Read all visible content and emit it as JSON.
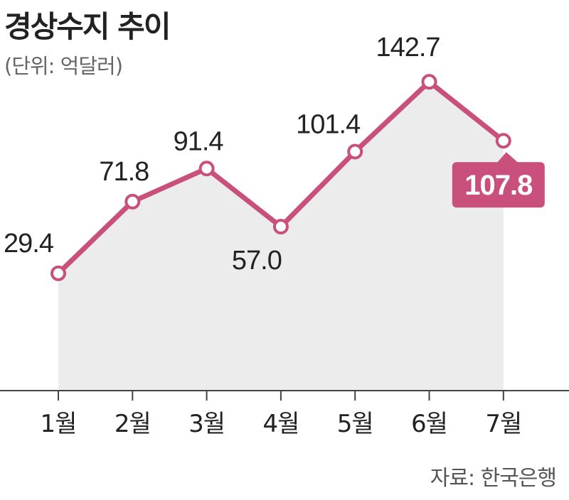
{
  "chart_data": {
    "type": "line",
    "title": "경상수지 추이",
    "unit": "(단위: 억달러)",
    "source": "자료: 한국은행",
    "categories": [
      "1월",
      "2월",
      "3월",
      "4월",
      "5월",
      "6월",
      "7월"
    ],
    "values": [
      29.4,
      71.8,
      91.4,
      57.0,
      101.4,
      142.7,
      107.8
    ],
    "labels": [
      "29.4",
      "71.8",
      "91.4",
      "57.0",
      "101.4",
      "142.7",
      "107.8"
    ],
    "highlight_index": 6,
    "ylim": [
      -40,
      160
    ],
    "grid": false,
    "colors": {
      "line": "#c94f7c",
      "fill": "#ececec",
      "axis": "#444444",
      "highlight_bg": "#c94f7c"
    }
  }
}
